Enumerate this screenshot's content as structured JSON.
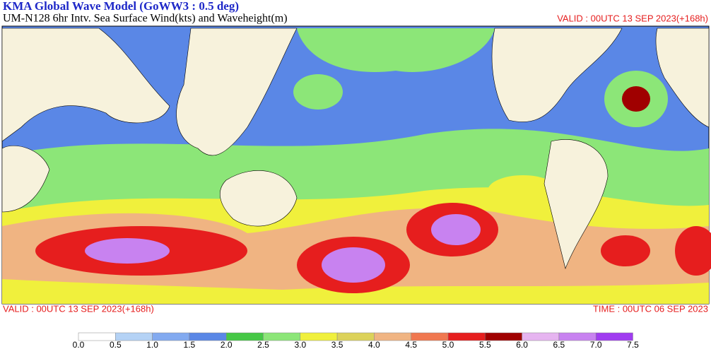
{
  "header": {
    "title": "KMA  Global Wave Model (GoWW3 : 0.5 deg)",
    "subtitle": "UM-N128  6hr Intv. Sea Surface Wind(kts) and Waveheight(m)",
    "valid_top": "VALID : 00UTC 13 SEP 2023(+168h)"
  },
  "footer": {
    "valid": "VALID : 00UTC 13 SEP 2023(+168h)",
    "time": "TIME : 00UTC 06 SEP 2023"
  },
  "colorbar": {
    "labels": [
      "0.0",
      "0.5",
      "1.0",
      "1.5",
      "2.0",
      "2.5",
      "3.0",
      "3.5",
      "4.0",
      "4.5",
      "5.0",
      "5.5",
      "6.0",
      "6.5",
      "7.0",
      "7.5"
    ],
    "colors": [
      "#ffffff",
      "#b4d2f5",
      "#82aaf0",
      "#5a87e6",
      "#46c846",
      "#8ce678",
      "#f0f03c",
      "#dcd25a",
      "#f0b482",
      "#f07850",
      "#e61e1e",
      "#a00000",
      "#e6b4f0",
      "#c882f0",
      "#a03cf0"
    ]
  }
}
